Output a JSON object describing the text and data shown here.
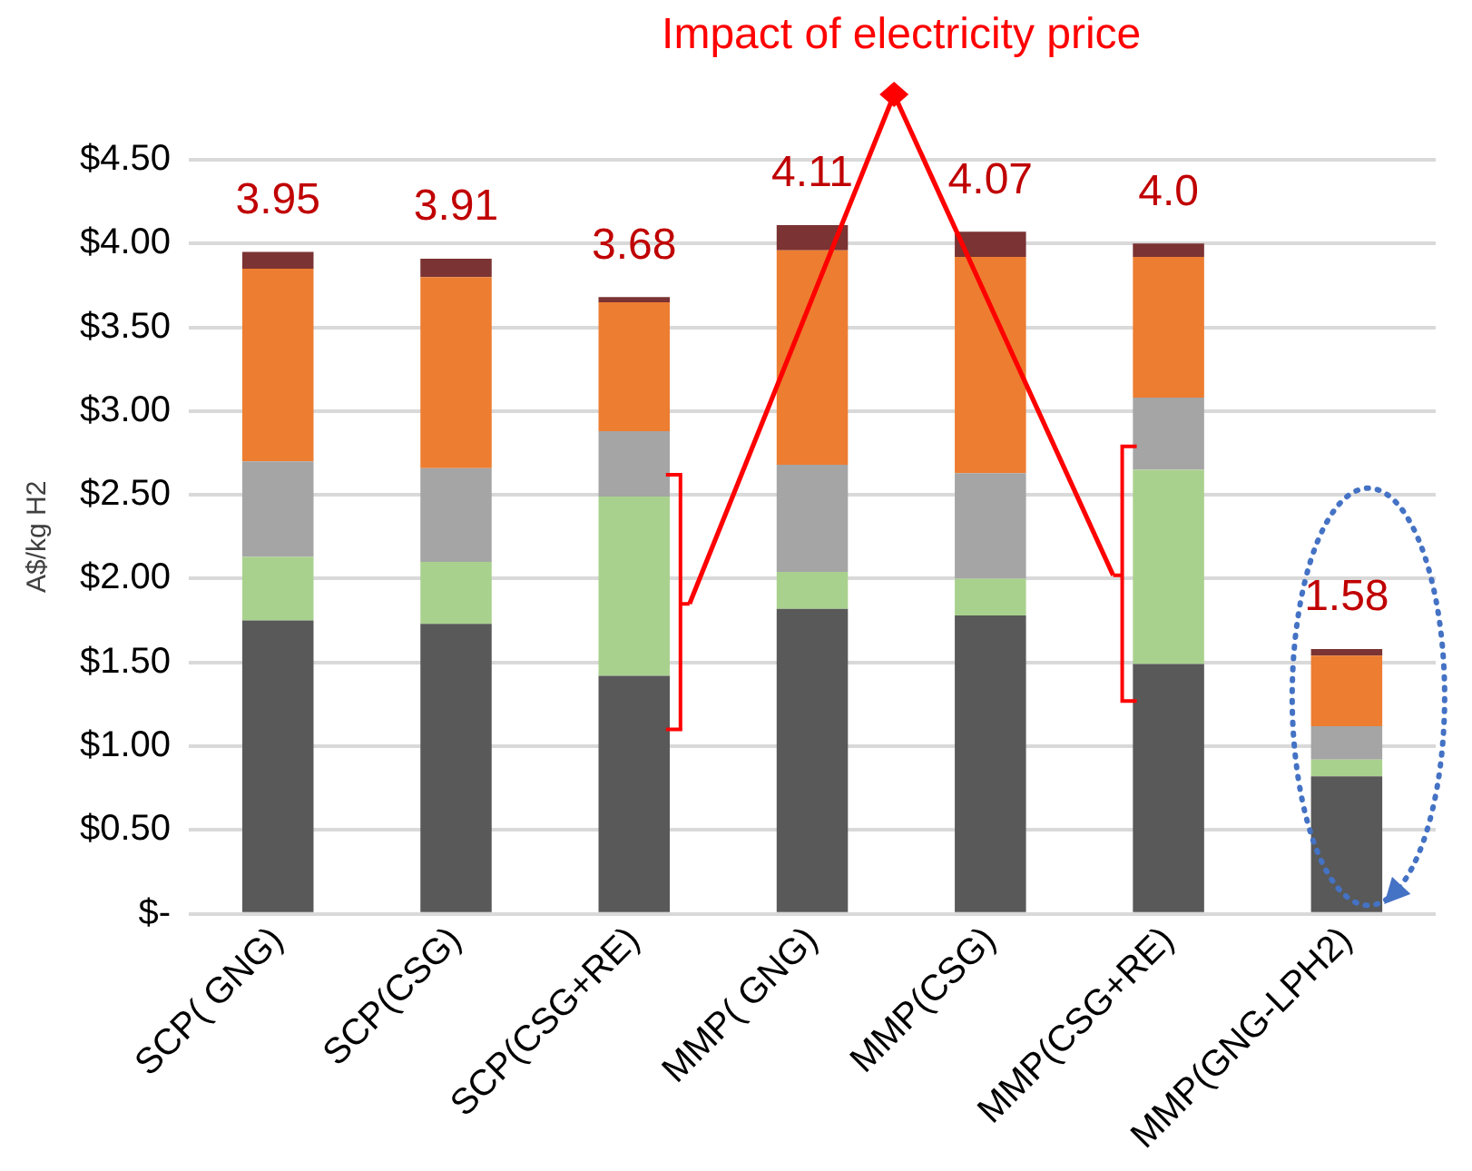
{
  "chart_data": {
    "type": "bar",
    "stacked": true,
    "ylabel": "A$/kg H2",
    "categories": [
      "SCP( GNG)",
      "SCP(CSG)",
      "SCP(CSG+RE)",
      "MMP( GNG)",
      "MMP(CSG)",
      "MMP(CSG+RE)",
      "MMP(GNG-LPH2)"
    ],
    "series": [
      {
        "color": "#595959",
        "values": [
          1.75,
          1.73,
          1.42,
          1.82,
          1.78,
          1.49,
          0.82
        ]
      },
      {
        "color": "#a9d18e",
        "values": [
          0.38,
          0.37,
          1.07,
          0.22,
          0.22,
          1.16,
          0.1
        ]
      },
      {
        "color": "#a5a5a5",
        "values": [
          0.57,
          0.56,
          0.39,
          0.64,
          0.63,
          0.43,
          0.2
        ]
      },
      {
        "color": "#ed7d31",
        "values": [
          1.15,
          1.14,
          0.77,
          1.28,
          1.29,
          0.84,
          0.42
        ]
      },
      {
        "color": "#7b3333",
        "values": [
          0.1,
          0.11,
          0.03,
          0.15,
          0.15,
          0.08,
          0.04
        ]
      }
    ],
    "totals": [
      "3.95",
      "3.91",
      "3.68",
      "4.11",
      "4.07",
      "4.0",
      "1.58"
    ],
    "ylim": [
      0,
      4.5
    ],
    "yticks": [
      {
        "value": 0,
        "label": "$-"
      },
      {
        "value": 0.5,
        "label": "$0.50"
      },
      {
        "value": 1,
        "label": "$1.00"
      },
      {
        "value": 1.5,
        "label": "$1.50"
      },
      {
        "value": 2,
        "label": "$2.00"
      },
      {
        "value": 2.5,
        "label": "$2.50"
      },
      {
        "value": 3,
        "label": "$3.00"
      },
      {
        "value": 3.5,
        "label": "$3.50"
      },
      {
        "value": 4,
        "label": "$4.00"
      },
      {
        "value": 4.5,
        "label": "$4.50"
      }
    ],
    "grid": "y",
    "legend": false,
    "annotations": [
      "Impact of electricity price"
    ]
  }
}
